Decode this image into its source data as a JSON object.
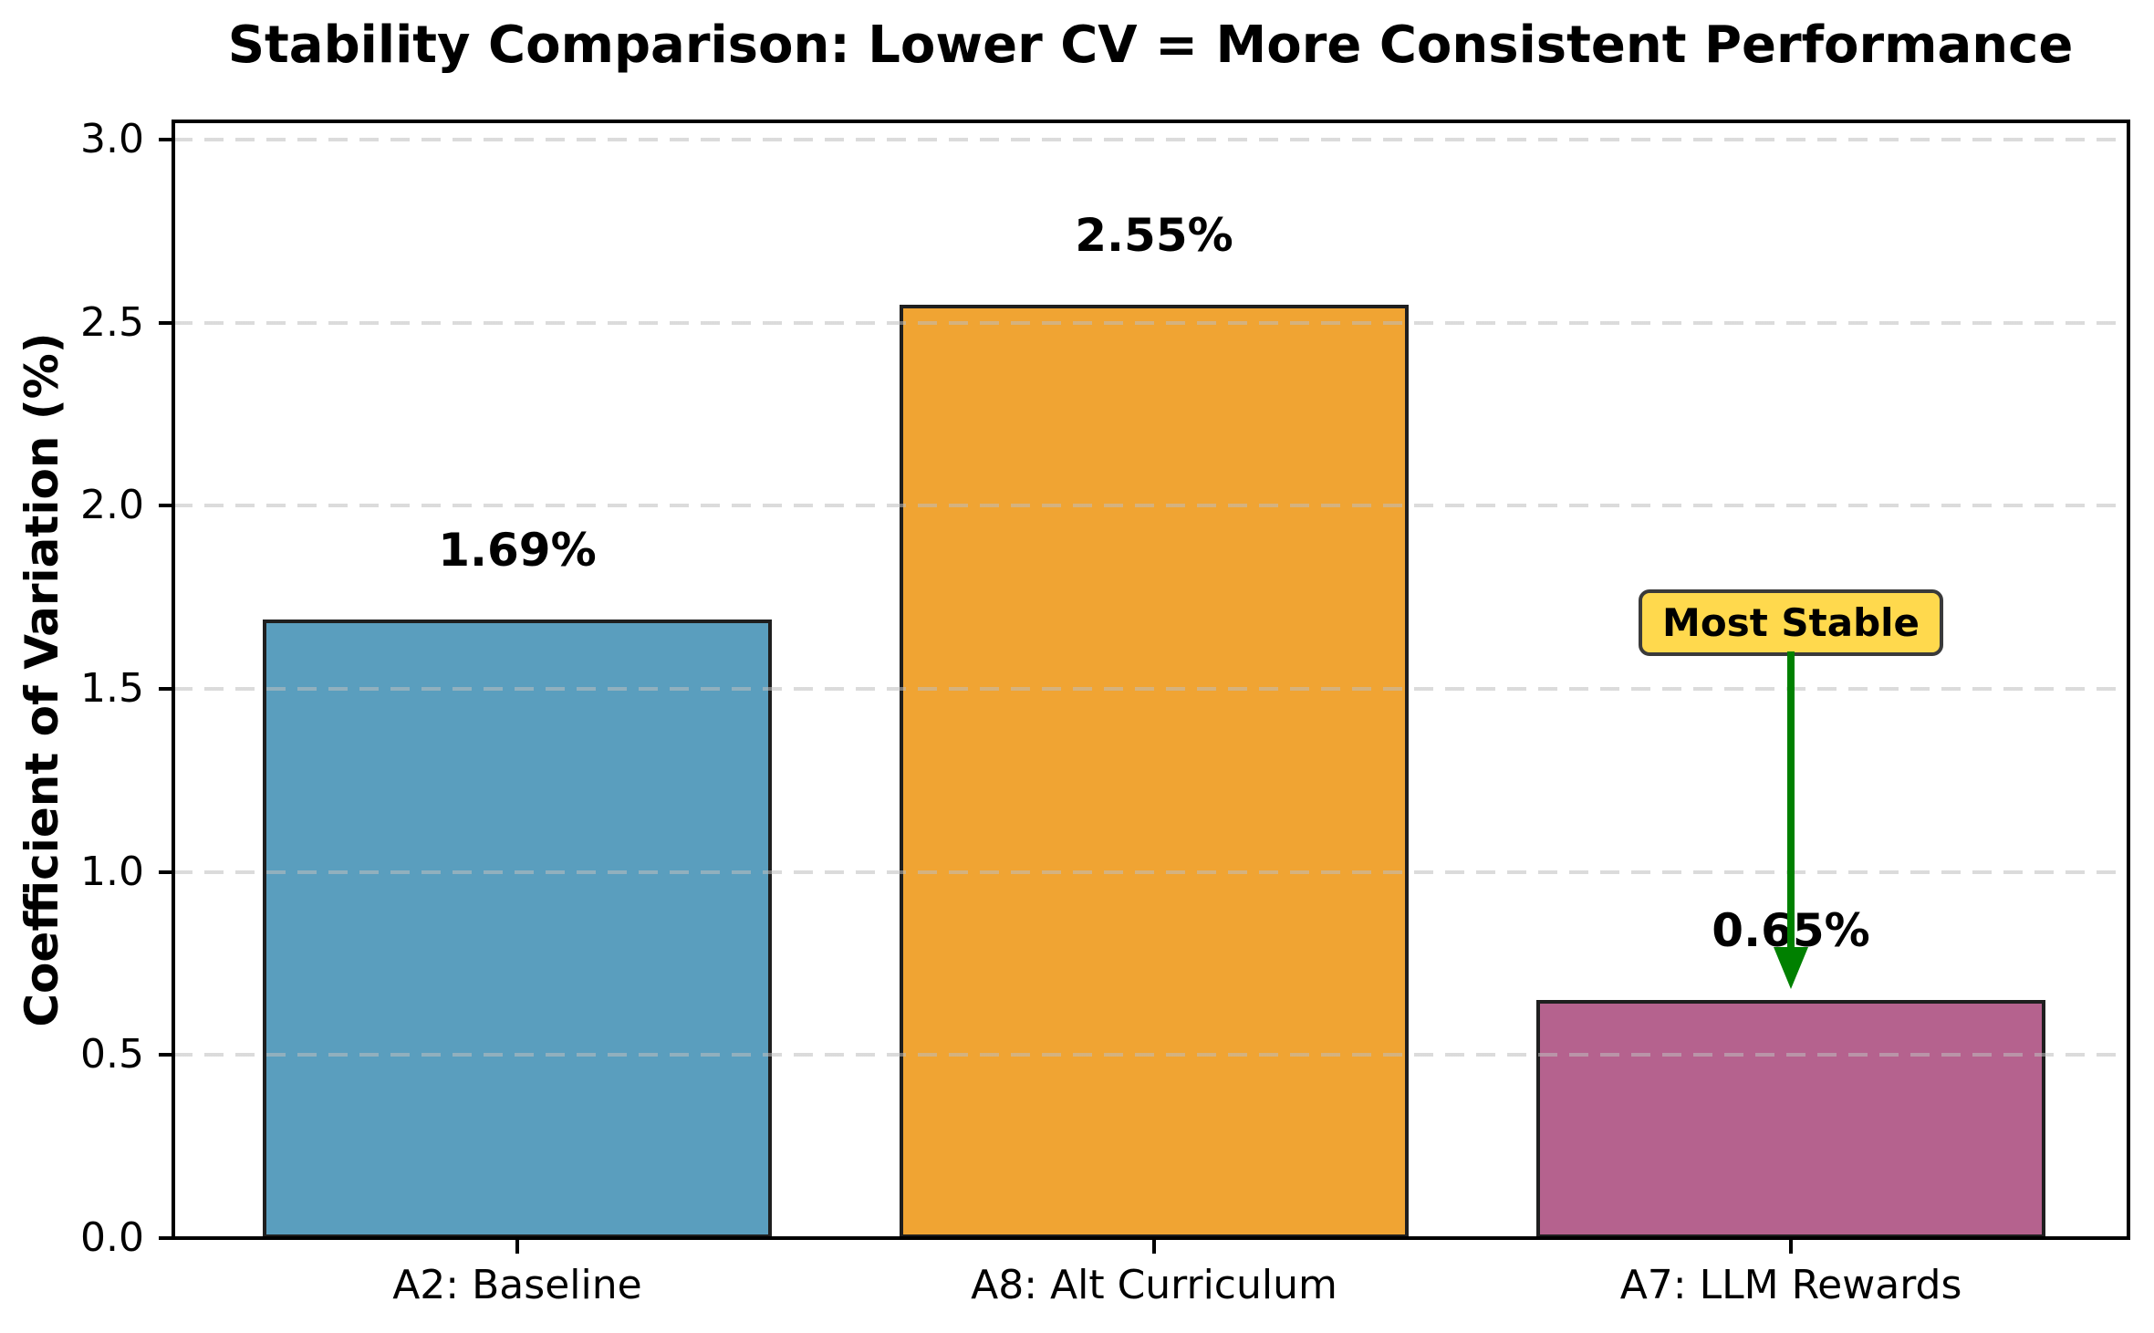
{
  "chart_data": {
    "type": "bar",
    "title": "Stability Comparison: Lower CV = More Consistent Performance",
    "ylabel": "Coefficient of Variation (%)",
    "xlabel": "",
    "categories": [
      "A2: Baseline",
      "A8: Alt Curriculum",
      "A7: LLM Rewards"
    ],
    "values": [
      1.69,
      2.55,
      0.65
    ],
    "value_labels": [
      "1.69%",
      "2.55%",
      "0.65%"
    ],
    "bar_colors": [
      "#5A9EBE",
      "#F0A433",
      "#B5628E"
    ],
    "bar_edge_color": "#1f1f1f",
    "ylim": [
      0,
      3.05
    ],
    "yticks": [
      "0.0",
      "0.5",
      "1.0",
      "1.5",
      "2.0",
      "2.5",
      "3.0"
    ],
    "ytick_values": [
      0,
      0.5,
      1.0,
      1.5,
      2.0,
      2.5,
      3.0
    ],
    "grid": "horizontal-dashed",
    "legend": "none",
    "annotation": {
      "text": "Most Stable",
      "target_category": "A7: LLM Rewards",
      "target_index": 2,
      "box_fill": "#FFD94D",
      "box_border": "#3a3a3a",
      "arrow_color": "#008000"
    }
  }
}
